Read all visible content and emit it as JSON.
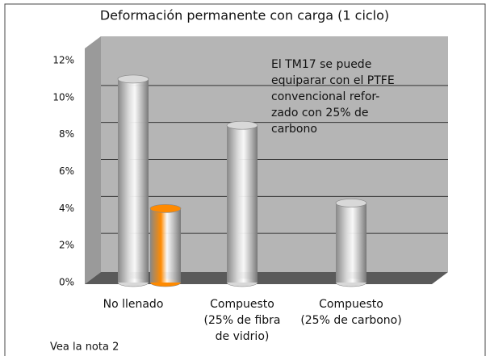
{
  "chart_data": {
    "type": "bar",
    "title": "Deformación permanente con carga (1 ciclo)",
    "categories": [
      [
        "No llenado"
      ],
      [
        "Compuesto",
        "(25% de fibra",
        "de vidrio)"
      ],
      [
        "Compuesto",
        "(25% de carbono)"
      ]
    ],
    "series": [
      {
        "color": "#d8d8d8",
        "values": [
          11,
          8.5,
          4.3
        ]
      },
      {
        "color": "#ff8a00",
        "values": [
          4,
          null,
          null
        ]
      }
    ],
    "ylim": [
      0,
      12
    ],
    "yticks": [
      {
        "value": 0,
        "label": "0%"
      },
      {
        "value": 2,
        "label": "2%"
      },
      {
        "value": 4,
        "label": "4%"
      },
      {
        "value": 6,
        "label": "6%"
      },
      {
        "value": 8,
        "label": "8%"
      },
      {
        "value": 10,
        "label": "10%"
      },
      {
        "value": 12,
        "label": "12%"
      }
    ],
    "grid": true,
    "annotation": [
      "El TM17 se puede",
      "equiparar con el PTFE",
      "convencional refor-",
      "zado con 25% de",
      "carbono"
    ],
    "note": "Vea la nota 2"
  }
}
